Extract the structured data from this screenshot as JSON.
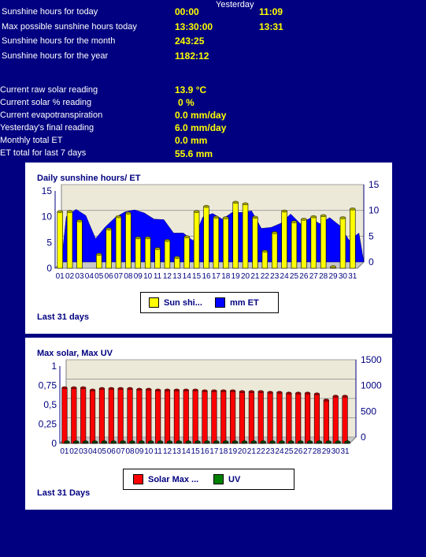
{
  "header": {
    "yesterday_label": "Yesterday",
    "rows": [
      {
        "label": "Sunshine hours for today",
        "today": "00:00",
        "yesterday": "11:09"
      },
      {
        "label": "Max possible sunshine hours today",
        "today": "13:30:00",
        "yesterday": "13:31"
      },
      {
        "label": "Sunshine hours for the month",
        "today": "243:25",
        "yesterday": ""
      },
      {
        "label": "Sunshine hours for the year",
        "today": "1182:12",
        "yesterday": ""
      }
    ]
  },
  "readings": [
    {
      "label": "Current raw solar reading",
      "value": "13.9 °C"
    },
    {
      "label": "Current solar % reading",
      "value": "0 %"
    },
    {
      "label": "Current evapotranspiration",
      "value": "0.0 mm/day"
    },
    {
      "label": "Yesterday's final reading",
      "value": "6.0 mm/day"
    },
    {
      "label": "Monthly total ET",
      "value": "0.0 mm"
    },
    {
      "label": "ET total for last 7 days",
      "value": "55.6 mm"
    }
  ],
  "colors": {
    "background": "#000080",
    "sunshine": "#ffff00",
    "et": "#0000ff",
    "solar_max": "#ff0000",
    "uv": "#008000",
    "plot_bg": "#ece9d8",
    "axis_text": "#000080"
  },
  "chart_data": [
    {
      "type": "bar",
      "title": "Daily sunshine hours/ ET",
      "footer": "Last 31 days",
      "categories": [
        "01",
        "02",
        "03",
        "04",
        "05",
        "06",
        "07",
        "08",
        "09",
        "10",
        "11",
        "12",
        "13",
        "14",
        "15",
        "16",
        "17",
        "18",
        "19",
        "20",
        "21",
        "22",
        "23",
        "24",
        "25",
        "26",
        "27",
        "28",
        "29",
        "30",
        "31"
      ],
      "ylim_left": [
        0,
        15
      ],
      "yticks_left": [
        "0",
        "5",
        "10",
        "15"
      ],
      "ylim_right": [
        0,
        15
      ],
      "yticks_right": [
        "0",
        "5",
        "10",
        "15"
      ],
      "grid": true,
      "legend_position": "bottom-center",
      "series": [
        {
          "name": "Sun shi...",
          "kind": "bar",
          "axis": "left",
          "values": [
            11,
            11,
            9.2,
            0,
            2.7,
            7.6,
            10,
            10.7,
            5.9,
            5.9,
            3.8,
            5.4,
            2.1,
            6.1,
            11,
            12,
            9.9,
            9.8,
            12.8,
            12.5,
            9.9,
            3.3,
            6.9,
            11.1,
            9,
            9.5,
            10,
            10.2,
            0.3,
            9.8,
            11.5
          ]
        },
        {
          "name": "mm ET",
          "kind": "area",
          "axis": "right",
          "values": [
            8.8,
            10.2,
            9,
            4.5,
            6.8,
            8.6,
            9.7,
            10.1,
            9.5,
            8.3,
            8.2,
            5.6,
            5.6,
            4.1,
            8.7,
            9.4,
            8.3,
            9.6,
            9.6,
            9.9,
            6.5,
            6.7,
            7.5,
            9.3,
            7.4,
            8.5,
            7.4,
            8.6,
            7.1,
            4.2,
            5.6
          ]
        }
      ]
    },
    {
      "type": "bar",
      "title": "Max solar, Max UV",
      "footer": "Last 31 Days",
      "categories": [
        "01",
        "02",
        "03",
        "04",
        "05",
        "06",
        "07",
        "08",
        "09",
        "10",
        "11",
        "12",
        "13",
        "14",
        "15",
        "16",
        "17",
        "18",
        "19",
        "20",
        "21",
        "22",
        "23",
        "24",
        "25",
        "26",
        "27",
        "28",
        "29",
        "30",
        "31"
      ],
      "ylim_left": [
        0,
        1
      ],
      "yticks_left": [
        "0",
        "0,25",
        "0,5",
        "0,75",
        "1"
      ],
      "ylim_right": [
        0,
        1500
      ],
      "yticks_right": [
        "0",
        "500",
        "1000",
        "1500"
      ],
      "grid": true,
      "legend_position": "bottom-center",
      "series": [
        {
          "name": "Solar Max ...",
          "kind": "bar",
          "axis": "left",
          "values": [
            0.72,
            0.72,
            0.72,
            0.69,
            0.71,
            0.71,
            0.71,
            0.71,
            0.7,
            0.7,
            0.69,
            0.69,
            0.69,
            0.69,
            0.69,
            0.68,
            0.68,
            0.68,
            0.68,
            0.67,
            0.67,
            0.67,
            0.66,
            0.66,
            0.65,
            0.65,
            0.65,
            0.64,
            0.56,
            0.61,
            0.61
          ]
        },
        {
          "name": "UV",
          "kind": "bar",
          "axis": "left",
          "values": [
            0.02,
            0.02,
            0.02,
            0.02,
            0.02,
            0.02,
            0.02,
            0.02,
            0.02,
            0.02,
            0.02,
            0.02,
            0.02,
            0.02,
            0.02,
            0.02,
            0.02,
            0.02,
            0.02,
            0.02,
            0.02,
            0.02,
            0.02,
            0.02,
            0.02,
            0.02,
            0.02,
            0.02,
            0.02,
            0.02,
            0.02
          ]
        }
      ]
    }
  ]
}
